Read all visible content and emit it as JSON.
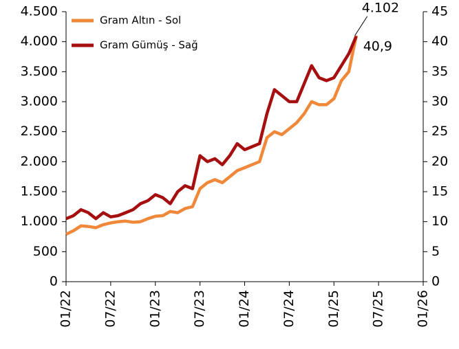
{
  "chart_data": {
    "type": "line",
    "x": [
      "01/22",
      "02/22",
      "03/22",
      "04/22",
      "05/22",
      "06/22",
      "07/22",
      "08/22",
      "09/22",
      "10/22",
      "11/22",
      "12/22",
      "01/23",
      "02/23",
      "03/23",
      "04/23",
      "05/23",
      "06/23",
      "07/23",
      "08/23",
      "09/23",
      "10/23",
      "11/23",
      "12/23",
      "01/24",
      "02/24",
      "03/24",
      "04/24",
      "05/24",
      "06/24",
      "07/24",
      "08/24",
      "09/24",
      "10/24",
      "11/24",
      "12/24",
      "01/25",
      "02/25",
      "03/25",
      "04/25"
    ],
    "series": [
      {
        "name": "Gram Altın - Sol",
        "color": "#f0883a",
        "axis": "y",
        "values": [
          790,
          850,
          930,
          920,
          900,
          950,
          980,
          1000,
          1010,
          990,
          1000,
          1050,
          1090,
          1100,
          1170,
          1150,
          1220,
          1250,
          1550,
          1650,
          1700,
          1650,
          1750,
          1850,
          1900,
          1950,
          2000,
          2400,
          2500,
          2450,
          2550,
          2650,
          2800,
          3000,
          2950,
          2950,
          3050,
          3350,
          3500,
          4102
        ],
        "value_labels": [
          null,
          null,
          null,
          null,
          null,
          null,
          null,
          null,
          null,
          null,
          null,
          null,
          null,
          null,
          null,
          null,
          null,
          null,
          null,
          null,
          null,
          null,
          null,
          null,
          null,
          null,
          null,
          null,
          null,
          null,
          null,
          null,
          null,
          null,
          null,
          null,
          null,
          null,
          null,
          "4.102"
        ]
      },
      {
        "name": "Gram Gümüş - Sağ",
        "color": "#a50f0f",
        "axis": "y2",
        "values": [
          10.5,
          11,
          12,
          11.5,
          10.5,
          11.5,
          10.8,
          11,
          11.5,
          12,
          13,
          13.5,
          14.5,
          14,
          13,
          15,
          16,
          15.5,
          21,
          20,
          20.5,
          19.5,
          21,
          23,
          22,
          22.5,
          23,
          28,
          32,
          31,
          30,
          30,
          33,
          36,
          34,
          33.5,
          34,
          36,
          38,
          40.9
        ],
        "value_labels": [
          null,
          null,
          null,
          null,
          null,
          null,
          null,
          null,
          null,
          null,
          null,
          null,
          null,
          null,
          null,
          null,
          null,
          null,
          null,
          null,
          null,
          null,
          null,
          null,
          null,
          null,
          null,
          null,
          null,
          null,
          null,
          null,
          null,
          null,
          null,
          null,
          null,
          null,
          null,
          "40,9"
        ]
      }
    ],
    "xticks": [
      "01/22",
      "07/22",
      "01/23",
      "07/23",
      "01/24",
      "07/24",
      "01/25",
      "07/25",
      "01/26"
    ],
    "xlim": [
      "01/22",
      "01/26"
    ],
    "ylim": [
      0,
      4500
    ],
    "yticks": [
      0,
      500,
      {
        "value": 1000,
        "label": "1.000"
      },
      {
        "value": 1500,
        "label": "1.500"
      },
      {
        "value": 2000,
        "label": "2.000"
      },
      {
        "value": 2500,
        "label": "2.500"
      },
      {
        "value": 3000,
        "label": "3.000"
      },
      {
        "value": 3500,
        "label": "3.500"
      },
      {
        "value": 4000,
        "label": "4.000"
      },
      {
        "value": 4500,
        "label": "4.500"
      }
    ],
    "y2lim": [
      0,
      45
    ],
    "y2ticks": [
      0,
      5,
      10,
      15,
      20,
      25,
      30,
      35,
      40,
      45
    ],
    "legend": "top-left"
  }
}
